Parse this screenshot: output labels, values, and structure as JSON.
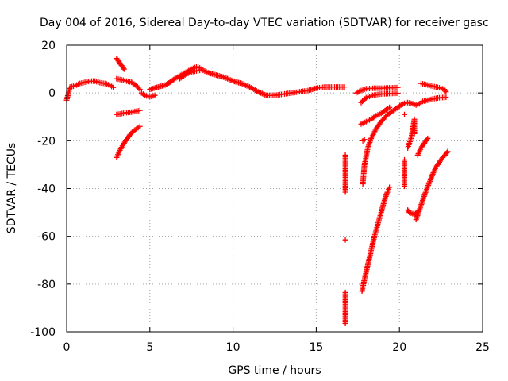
{
  "chart_data": {
    "type": "scatter",
    "title": "Day 004 of 2016, Sidereal Day-to-day VTEC variation (SDTVAR) for receiver gasc",
    "xlabel": "GPS time / hours",
    "ylabel": "SDTVAR / TECUs",
    "xlim": [
      0,
      25
    ],
    "ylim": [
      -100,
      20
    ],
    "xticks": [
      0,
      5,
      10,
      15,
      20,
      25
    ],
    "yticks": [
      -100,
      -80,
      -60,
      -40,
      -20,
      0,
      20
    ],
    "xtick_labels": [
      "0",
      "5",
      "10",
      "15",
      "20",
      "25"
    ],
    "ytick_labels": [
      "-100",
      "-80",
      "-60",
      "-40",
      "-20",
      "0",
      "20"
    ],
    "grid": true,
    "marker": "+",
    "marker_color": "#ff0000",
    "series": [
      {
        "name": "seg-main-early",
        "points": [
          [
            0.0,
            -3
          ],
          [
            0.2,
            2.5
          ],
          [
            0.5,
            3
          ],
          [
            0.8,
            4
          ],
          [
            1.1,
            4.5
          ],
          [
            1.4,
            5
          ],
          [
            1.7,
            5
          ],
          [
            2.0,
            4.3
          ],
          [
            2.3,
            4
          ],
          [
            2.6,
            3.2
          ],
          [
            2.8,
            2.3
          ]
        ]
      },
      {
        "name": "seg-3h-upper",
        "points": [
          [
            3.0,
            14.5
          ],
          [
            3.15,
            13
          ],
          [
            3.3,
            11.5
          ],
          [
            3.45,
            10
          ]
        ]
      },
      {
        "name": "seg-3h-mid",
        "points": [
          [
            3.0,
            6
          ],
          [
            3.3,
            5.5
          ],
          [
            3.6,
            5
          ],
          [
            3.9,
            4.5
          ],
          [
            4.2,
            3
          ],
          [
            4.4,
            1.5
          ]
        ]
      },
      {
        "name": "seg-3h-neg9",
        "points": [
          [
            3.0,
            -9
          ],
          [
            3.3,
            -8.6
          ],
          [
            3.6,
            -8.2
          ],
          [
            3.9,
            -8
          ],
          [
            4.2,
            -7.6
          ],
          [
            4.4,
            -7.3
          ]
        ]
      },
      {
        "name": "seg-3h-rise",
        "points": [
          [
            3.0,
            -27
          ],
          [
            3.2,
            -24
          ],
          [
            3.4,
            -21.5
          ],
          [
            3.6,
            -19.5
          ],
          [
            3.8,
            -17.5
          ],
          [
            4.0,
            -16
          ],
          [
            4.2,
            -15
          ],
          [
            4.4,
            -14
          ]
        ]
      },
      {
        "name": "seg-4.5h-dip",
        "points": [
          [
            4.5,
            0
          ],
          [
            4.7,
            -1
          ],
          [
            4.9,
            -1.5
          ],
          [
            5.1,
            -1.5
          ],
          [
            5.3,
            -1
          ]
        ]
      },
      {
        "name": "seg-main-mid",
        "points": [
          [
            5.0,
            1.5
          ],
          [
            5.5,
            2.5
          ],
          [
            6.0,
            3.5
          ],
          [
            6.5,
            6
          ],
          [
            7.0,
            8
          ],
          [
            7.5,
            10
          ],
          [
            7.8,
            11
          ],
          [
            8.0,
            10.5
          ],
          [
            8.2,
            9.5
          ],
          [
            8.5,
            8.5
          ],
          [
            9.0,
            7.5
          ],
          [
            9.5,
            6.5
          ],
          [
            10.0,
            5
          ],
          [
            10.5,
            4
          ],
          [
            11.0,
            2.5
          ],
          [
            11.5,
            0.5
          ],
          [
            12.0,
            -1
          ],
          [
            12.5,
            -1
          ],
          [
            13.0,
            -0.5
          ],
          [
            13.5,
            0
          ],
          [
            14.0,
            0.5
          ],
          [
            14.5,
            1
          ],
          [
            15.0,
            2
          ],
          [
            15.5,
            2.5
          ],
          [
            16.0,
            2.5
          ],
          [
            16.5,
            2.5
          ],
          [
            16.7,
            2.5
          ]
        ]
      },
      {
        "name": "seg-main-upper-branch",
        "points": [
          [
            6.8,
            6
          ],
          [
            7.2,
            8
          ],
          [
            7.6,
            9
          ],
          [
            8.0,
            9.5
          ]
        ]
      },
      {
        "name": "seg-16.8h-drop",
        "points": [
          [
            16.75,
            -26
          ],
          [
            16.75,
            -30.5
          ],
          [
            16.75,
            -41.5
          ],
          [
            16.75,
            -61.5
          ],
          [
            16.75,
            -83.5
          ],
          [
            16.75,
            -96.5
          ]
        ]
      },
      {
        "name": "seg-17.5h-upper",
        "points": [
          [
            17.4,
            0
          ],
          [
            17.7,
            1
          ],
          [
            18.0,
            1.8
          ],
          [
            18.5,
            2
          ],
          [
            19.0,
            2
          ],
          [
            19.5,
            2.2
          ],
          [
            19.9,
            2.3
          ]
        ]
      },
      {
        "name": "seg-17.8h-rise-small",
        "points": [
          [
            17.7,
            -4
          ],
          [
            18.0,
            -2
          ],
          [
            18.4,
            -1
          ],
          [
            18.8,
            -0.5
          ],
          [
            19.2,
            -0.3
          ],
          [
            19.6,
            -0.2
          ],
          [
            19.9,
            -0.1
          ]
        ]
      },
      {
        "name": "seg-17.7h-neg13",
        "points": [
          [
            17.7,
            -13
          ],
          [
            18.0,
            -12
          ],
          [
            18.3,
            -11
          ],
          [
            18.6,
            -9.5
          ],
          [
            18.9,
            -8.5
          ],
          [
            19.2,
            -7
          ],
          [
            19.4,
            -6
          ]
        ]
      },
      {
        "name": "seg-17.8h-big-rise",
        "points": [
          [
            17.8,
            -38
          ],
          [
            17.9,
            -30
          ],
          [
            18.1,
            -23
          ],
          [
            18.3,
            -19
          ],
          [
            18.6,
            -15
          ],
          [
            18.9,
            -12
          ],
          [
            19.3,
            -9
          ],
          [
            19.7,
            -7
          ],
          [
            20.1,
            -5
          ],
          [
            20.4,
            -4
          ]
        ]
      },
      {
        "name": "seg-17.8h-deep",
        "points": [
          [
            17.75,
            -83
          ],
          [
            17.9,
            -78
          ],
          [
            18.1,
            -72
          ],
          [
            18.3,
            -66
          ],
          [
            18.5,
            -60
          ],
          [
            18.7,
            -55
          ],
          [
            18.9,
            -50
          ],
          [
            19.1,
            -45
          ],
          [
            19.3,
            -41
          ],
          [
            19.4,
            -39.5
          ]
        ]
      },
      {
        "name": "seg-17.8h-20",
        "points": [
          [
            17.8,
            -20
          ],
          [
            17.9,
            -19.5
          ]
        ]
      },
      {
        "name": "seg-20.5h-sparse",
        "points": [
          [
            20.3,
            -9
          ],
          [
            20.3,
            -28
          ],
          [
            20.3,
            -39
          ],
          [
            20.5,
            -23
          ],
          [
            20.6,
            -21
          ],
          [
            20.7,
            -19
          ],
          [
            20.9,
            -11
          ],
          [
            20.9,
            -17
          ]
        ]
      },
      {
        "name": "seg-20.6h-neg50",
        "points": [
          [
            20.5,
            -49
          ],
          [
            20.6,
            -50
          ],
          [
            20.8,
            -50.5
          ],
          [
            20.9,
            -51
          ],
          [
            21.1,
            -49.5
          ]
        ]
      },
      {
        "name": "seg-21h-big-rise",
        "points": [
          [
            21.0,
            -53
          ],
          [
            21.2,
            -49
          ],
          [
            21.4,
            -45
          ],
          [
            21.6,
            -41
          ],
          [
            21.8,
            -37.5
          ],
          [
            22.0,
            -34
          ],
          [
            22.2,
            -31
          ],
          [
            22.4,
            -29
          ],
          [
            22.6,
            -27
          ],
          [
            22.8,
            -25.5
          ],
          [
            22.9,
            -24.5
          ]
        ]
      },
      {
        "name": "seg-21h-neg20",
        "points": [
          [
            21.1,
            -26
          ],
          [
            21.3,
            -23
          ],
          [
            21.5,
            -21
          ],
          [
            21.7,
            -19
          ]
        ]
      },
      {
        "name": "seg-20.5h-neg4",
        "points": [
          [
            20.5,
            -4
          ],
          [
            20.8,
            -4.5
          ],
          [
            21.0,
            -5
          ],
          [
            21.2,
            -4.5
          ],
          [
            21.4,
            -3.5
          ],
          [
            21.7,
            -3
          ],
          [
            22.0,
            -2.5
          ],
          [
            22.4,
            -2
          ],
          [
            22.8,
            -1.8
          ]
        ]
      },
      {
        "name": "seg-21.3h-upper",
        "points": [
          [
            21.3,
            4
          ],
          [
            21.6,
            3.5
          ],
          [
            21.9,
            3
          ],
          [
            22.2,
            2.5
          ],
          [
            22.5,
            2
          ],
          [
            22.7,
            1.5
          ],
          [
            22.8,
            0.5
          ]
        ]
      }
    ]
  }
}
